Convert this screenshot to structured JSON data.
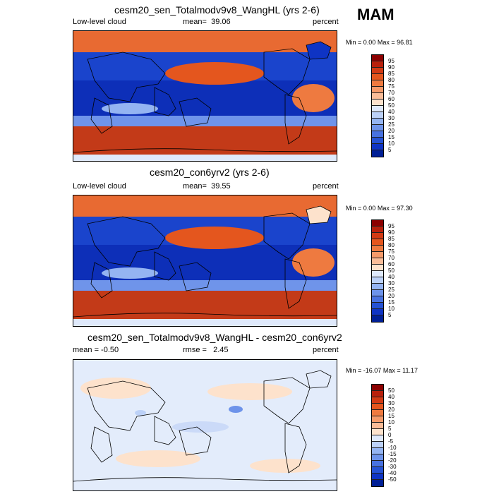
{
  "season": "MAM",
  "panels": [
    {
      "title": "cesm20_sen_Totalmodv9v8_WangHL (yrs 2-6)",
      "left_label": "Low-level cloud",
      "stat_label": "mean=",
      "stat_value": "39.06",
      "units": "percent",
      "min_label": "Min =",
      "min_value": "0.00",
      "max_label": "Max =",
      "max_value": "96.81",
      "colorbar": {
        "labels": [
          "95",
          "90",
          "85",
          "80",
          "75",
          "70",
          "60",
          "50",
          "40",
          "30",
          "25",
          "20",
          "15",
          "10",
          "5"
        ],
        "colors": [
          "#8b0000",
          "#b8200c",
          "#d23a14",
          "#e4561e",
          "#ee7a40",
          "#f59a6a",
          "#f9bc98",
          "#fde2cc",
          "#dfe9fb",
          "#bcd1f7",
          "#94b4f2",
          "#6d93ea",
          "#4872e0",
          "#2552d4",
          "#0f34c4",
          "#001f96"
        ]
      }
    },
    {
      "title": "cesm20_con6yrv2 (yrs 2-6)",
      "left_label": "Low-level cloud",
      "stat_label": "mean=",
      "stat_value": "39.55",
      "units": "percent",
      "min_label": "Min =",
      "min_value": "0.00",
      "max_label": "Max =",
      "max_value": "97.30",
      "colorbar": {
        "labels": [
          "95",
          "90",
          "85",
          "80",
          "75",
          "70",
          "60",
          "50",
          "40",
          "30",
          "25",
          "20",
          "15",
          "10",
          "5"
        ],
        "colors": [
          "#8b0000",
          "#b8200c",
          "#d23a14",
          "#e4561e",
          "#ee7a40",
          "#f59a6a",
          "#f9bc98",
          "#fde2cc",
          "#dfe9fb",
          "#bcd1f7",
          "#94b4f2",
          "#6d93ea",
          "#4872e0",
          "#2552d4",
          "#0f34c4",
          "#001f96"
        ]
      }
    },
    {
      "title": "cesm20_sen_Totalmodv9v8_WangHL - cesm20_con6yrv2",
      "left_label": "mean =  -0.50",
      "stat_label": "rmse =",
      "stat_value": "2.45",
      "units": "percent",
      "min_label": "Min =",
      "min_value": "-16.07",
      "max_label": "Max =",
      "max_value": "11.17",
      "colorbar": {
        "labels": [
          "50",
          "40",
          "30",
          "20",
          "15",
          "10",
          "5",
          "0",
          "-5",
          "-10",
          "-15",
          "-20",
          "-30",
          "-40",
          "-50"
        ],
        "colors": [
          "#8b0000",
          "#b8200c",
          "#d23a14",
          "#e4561e",
          "#ee7a40",
          "#f59a6a",
          "#f9bc98",
          "#fde2cc",
          "#dfe9fb",
          "#bcd1f7",
          "#94b4f2",
          "#6d93ea",
          "#4872e0",
          "#2552d4",
          "#0f34c4",
          "#001f96"
        ]
      }
    }
  ]
}
